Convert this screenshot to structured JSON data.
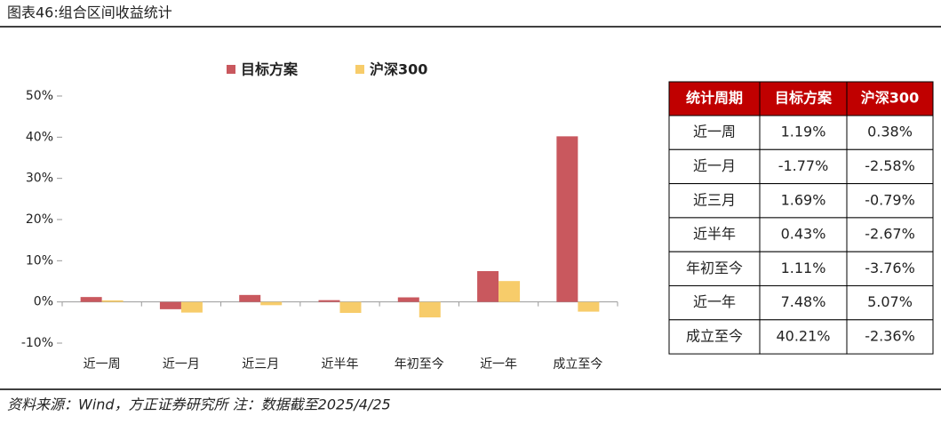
{
  "header": {
    "title": "图表46:组合区间收益统计"
  },
  "chart_data": {
    "type": "bar",
    "categories": [
      "近一周",
      "近一月",
      "近三月",
      "近半年",
      "年初至今",
      "近一年",
      "成立至今"
    ],
    "series": [
      {
        "name": "目标方案",
        "color": "#c9585e",
        "values": [
          1.19,
          -1.77,
          1.69,
          0.43,
          1.11,
          7.48,
          40.21
        ]
      },
      {
        "name": "沪深300",
        "color": "#f7cc6a",
        "values": [
          0.38,
          -2.58,
          -0.79,
          -2.67,
          -3.76,
          5.07,
          -2.36
        ]
      }
    ],
    "ylim": [
      -10,
      50
    ],
    "yticks": [
      {
        "value": -10,
        "label": "-10%"
      },
      {
        "value": 0,
        "label": "0%"
      },
      {
        "value": 10,
        "label": "10%"
      },
      {
        "value": 20,
        "label": "20%"
      },
      {
        "value": 30,
        "label": "30%"
      },
      {
        "value": 40,
        "label": "40%"
      },
      {
        "value": 50,
        "label": "50%"
      }
    ],
    "grid": false,
    "legend": "top"
  },
  "table": {
    "columns": [
      "统计周期",
      "目标方案",
      "沪深300"
    ],
    "rows": [
      [
        "近一周",
        "1.19%",
        "0.38%"
      ],
      [
        "近一月",
        "-1.77%",
        "-2.58%"
      ],
      [
        "近三月",
        "1.69%",
        "-0.79%"
      ],
      [
        "近半年",
        "0.43%",
        "-2.67%"
      ],
      [
        "年初至今",
        "1.11%",
        "-3.76%"
      ],
      [
        "近一年",
        "7.48%",
        "5.07%"
      ],
      [
        "成立至今",
        "40.21%",
        "-2.36%"
      ]
    ]
  },
  "footer": {
    "source": "资料来源：Wind，方正证券研究所 注：数据截至2025/4/25"
  }
}
